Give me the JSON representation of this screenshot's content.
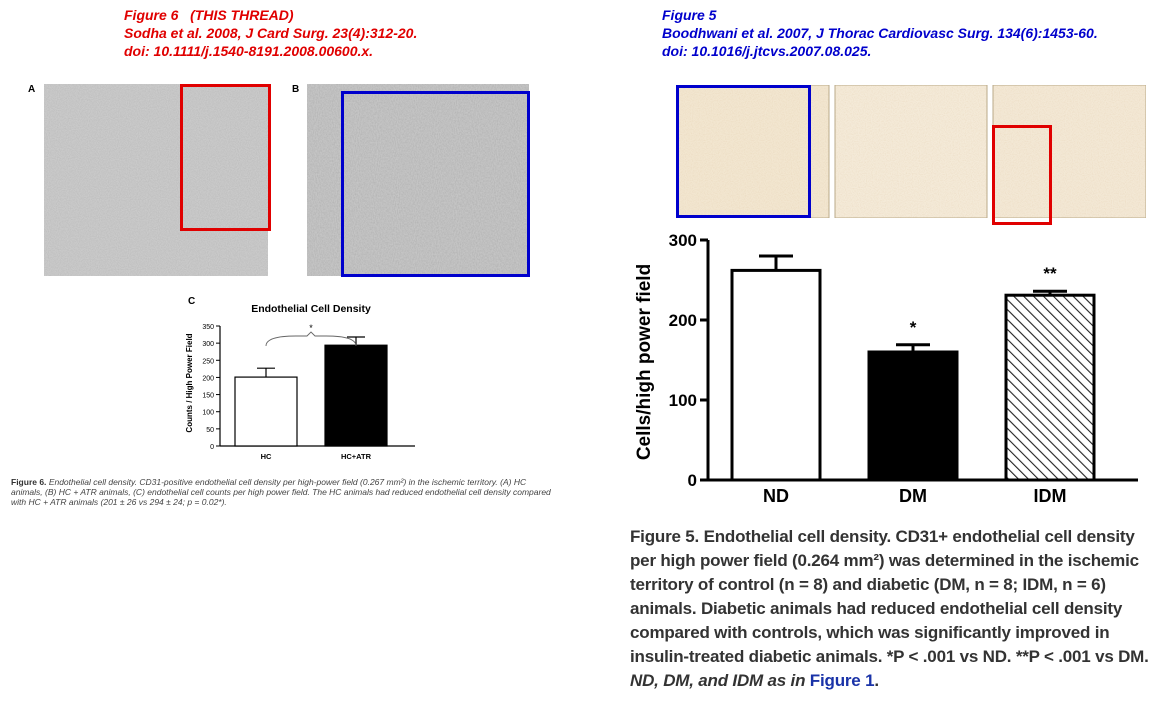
{
  "left_header": {
    "line1": "Figure 6   (THIS THREAD)",
    "line2": "Sodha et al. 2008, J Card Surg. 23(4):312-20.",
    "line3": "doi: 10.1111/j.1540-8191.2008.00600.x."
  },
  "right_header": {
    "line1": "Figure 5",
    "line2": "Boodhwani et al. 2007, J Thorac Cardiovasc Surg. 134(6):1453-60.",
    "line3": "doi: 10.1016/j.jtcvs.2007.08.025."
  },
  "left_panels": {
    "a": "A",
    "b": "B",
    "c": "C"
  },
  "left_caption": {
    "label": "Figure 6.",
    "text": "Endothelial cell density. CD31-positive endothelial cell density per high-power field (0.267 mm²) in the ischemic territory. (A) HC animals, (B) HC + ATR animals, (C) endothelial cell counts per high power field. The HC animals had reduced endothelial cell density compared with HC + ATR animals (201 ± 26 vs 294 ± 24; p = 0.02*)."
  },
  "right_caption": {
    "text": "Figure 5. Endothelial cell density. CD31+ endothelial cell density per high power field (0.264 mm²) was determined in the ischemic territory of control (n = 8) and diabetic (DM, n = 8; IDM, n = 6) animals. Diabetic animals had reduced endothelial cell density compared with controls, which was significantly improved in insulin-treated diabetic animals. *P < .001 vs ND. **P < .001 vs DM.",
    "tail": "ND, DM, and IDM as in",
    "link": "Figure 1",
    "end": "."
  },
  "colors": {
    "red_annotation": "#e00000",
    "blue_annotation": "#0000cc",
    "micrograph_gray": "#c9c9c9",
    "micrograph_tan": "#f1e6d2"
  },
  "chart_data": [
    {
      "type": "bar",
      "title": "Endothelial Cell Density",
      "ylabel": "Counts / High Power Field",
      "xlabel": "",
      "categories": [
        "HC",
        "HC+ATR"
      ],
      "values": [
        201,
        294
      ],
      "errors": [
        26,
        24
      ],
      "ylim": [
        0,
        350
      ],
      "yticks": [
        0,
        50,
        100,
        150,
        200,
        250,
        300,
        350
      ],
      "bar_fills": [
        "white",
        "black"
      ],
      "significance": "*",
      "grid": false
    },
    {
      "type": "bar",
      "title": "",
      "ylabel": "Cells/high power field",
      "xlabel": "",
      "categories": [
        "ND",
        "DM",
        "IDM"
      ],
      "values": [
        262,
        160,
        231
      ],
      "errors": [
        18,
        9,
        5
      ],
      "ylim": [
        0,
        300
      ],
      "yticks": [
        0,
        100,
        200,
        300
      ],
      "bar_fills": [
        "white",
        "black",
        "hatched"
      ],
      "significance": [
        "",
        "*",
        "**"
      ],
      "grid": false
    }
  ]
}
